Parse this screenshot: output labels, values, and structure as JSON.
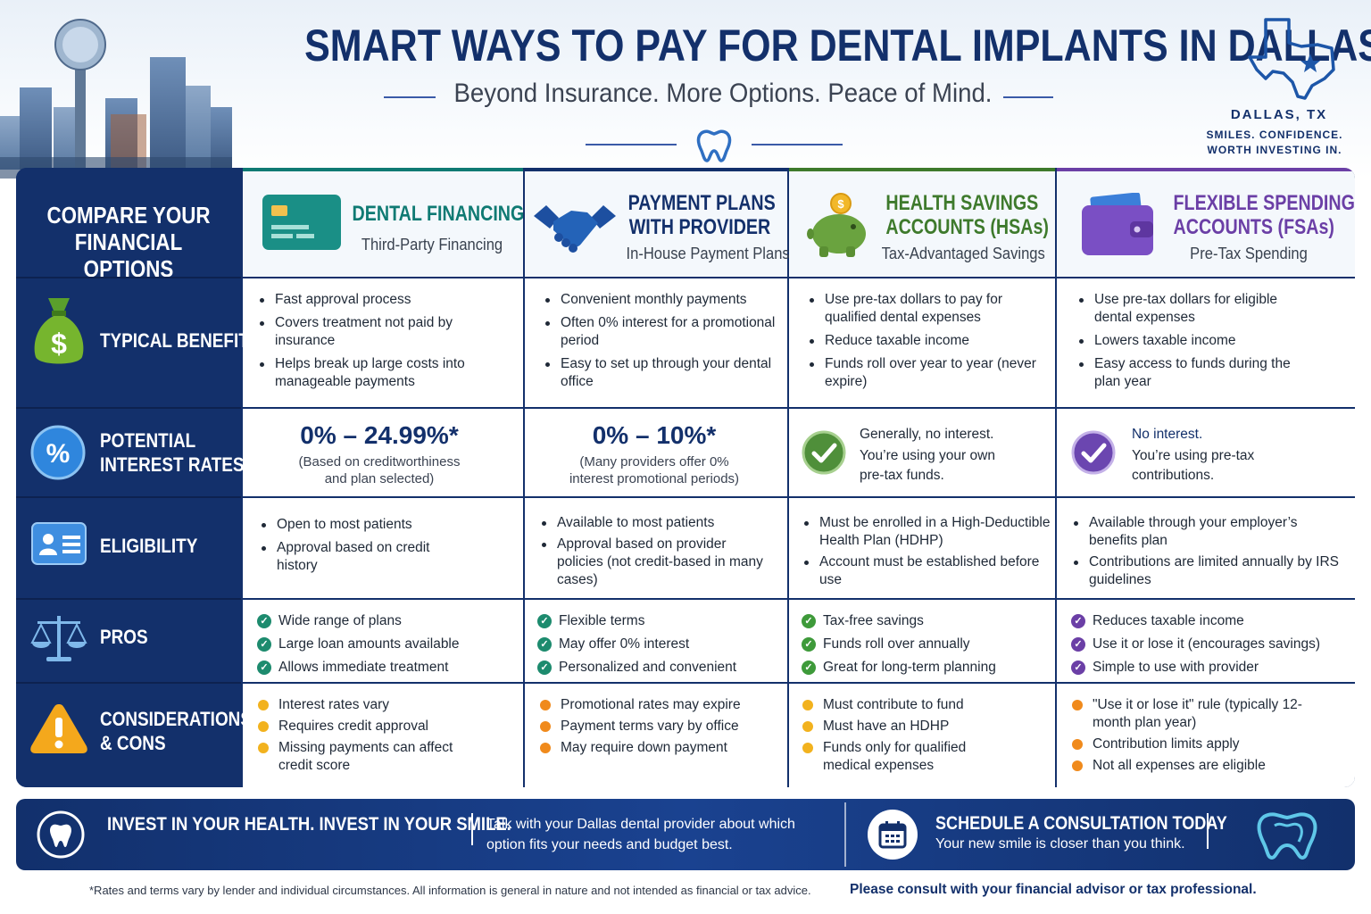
{
  "header": {
    "title": "SMART WAYS TO PAY FOR DENTAL IMPLANTS IN DALLAS",
    "subtitle": "Beyond Insurance. More Options. Peace of Mind.",
    "location": "DALLAS, TX",
    "tagline_1": "SMILES. CONFIDENCE.",
    "tagline_2": "WORTH INVESTING IN."
  },
  "table": {
    "corner_title_1": "COMPARE YOUR",
    "corner_title_2": "FINANCIAL OPTIONS",
    "columns": [
      {
        "title_1": "DENTAL FINANCING PLANS",
        "title_2": "",
        "subtitle": "Third-Party Financing",
        "color": "#0f7a73",
        "icon": "credit-card-icon"
      },
      {
        "title_1": "PAYMENT PLANS",
        "title_2": "WITH PROVIDER",
        "subtitle": "In-House Payment Plans",
        "color": "#13306b",
        "icon": "handshake-icon"
      },
      {
        "title_1": "HEALTH SAVINGS",
        "title_2": "ACCOUNTS (HSAs)",
        "subtitle": "Tax-Advantaged Savings",
        "color": "#3e7a2c",
        "icon": "piggy-bank-icon"
      },
      {
        "title_1": "FLEXIBLE SPENDING",
        "title_2": "ACCOUNTS (FSAs)",
        "subtitle": "Pre-Tax Spending",
        "color": "#6b3fa6",
        "icon": "wallet-icon"
      }
    ],
    "rows": {
      "benefits": {
        "label": "TYPICAL BENEFITS",
        "icon": "money-bag-icon",
        "cells": [
          [
            "Fast approval process",
            "Covers treatment not paid by insurance",
            "Helps break up large costs into manageable payments"
          ],
          [
            "Convenient monthly payments",
            "Often 0% interest for a promotional period",
            "Easy to set up through your dental office"
          ],
          [
            "Use pre-tax dollars to pay for qualified dental expenses",
            "Reduce taxable income",
            "Funds roll over year to year (never expire)"
          ],
          [
            "Use pre-tax dollars for eligible dental expenses",
            "Lowers taxable income",
            "Easy access to funds during the plan year"
          ]
        ]
      },
      "rates": {
        "label_1": "POTENTIAL",
        "label_2": "INTEREST RATES",
        "icon": "percent-icon",
        "cells": [
          {
            "big": "0% – 24.99%*",
            "note_1": "(Based on creditworthiness",
            "note_2": "and plan selected)"
          },
          {
            "big": "0% – 10%*",
            "note_1": "(Many providers offer 0%",
            "note_2": "interest promotional periods)"
          },
          {
            "lead": "Generally, no interest.",
            "note_1": "You’re using your own",
            "note_2": "pre-tax funds."
          },
          {
            "lead": "No interest.",
            "note_1": "You’re using pre-tax",
            "note_2": "contributions."
          }
        ]
      },
      "eligibility": {
        "label": "ELIGIBILITY",
        "icon": "id-card-icon",
        "cells": [
          [
            "Open to most patients",
            "Approval based on credit history"
          ],
          [
            "Available to most patients",
            "Approval based on provider policies (not credit-based in many cases)"
          ],
          [
            "Must be enrolled in a High-Deductible Health Plan (HDHP)",
            "Account must be established before use"
          ],
          [
            "Available through your employer’s benefits plan",
            "Contributions are limited annually by IRS guidelines"
          ]
        ]
      },
      "pros": {
        "label": "PROS",
        "icon": "scales-icon",
        "cells": [
          [
            "Wide range of plans",
            "Large loan amounts available",
            "Allows immediate treatment"
          ],
          [
            "Flexible terms",
            "May offer 0% interest",
            "Personalized and convenient"
          ],
          [
            "Tax-free savings",
            "Funds roll over annually",
            "Great for long-term planning"
          ],
          [
            "Reduces taxable income",
            "Use it or lose it (encourages savings)",
            "Simple to use with provider"
          ]
        ]
      },
      "cons": {
        "label_1": "CONSIDERATIONS",
        "label_2": "& CONS",
        "icon": "warning-icon",
        "cells": [
          [
            "Interest rates vary",
            "Requires credit approval",
            "Missing payments can affect credit score"
          ],
          [
            "Promotional rates may expire",
            "Payment terms vary by office",
            "May require down payment"
          ],
          [
            "Must contribute to fund",
            "Must have an HDHP",
            "Funds only for qualified medical expenses"
          ],
          [
            "\"Use it or lose it\" rule (typically 12-month plan year)",
            "Contribution limits apply",
            "Not all expenses are eligible"
          ]
        ]
      }
    }
  },
  "banner": {
    "headline": "INVEST IN YOUR HEALTH. INVEST IN YOUR SMILE.",
    "body_1": "Talk with your Dallas dental provider about which",
    "body_2": "option fits your needs and budget best.",
    "cta_title": "SCHEDULE A CONSULTATION TODAY",
    "cta_sub": "Your new smile is closer than you think."
  },
  "footer": {
    "disclaimer": "*Rates and terms vary by lender and individual circumstances. All information is general in nature and not intended as financial or tax advice.",
    "advice": "Please consult with your financial advisor or tax professional."
  },
  "colors": {
    "navy": "#13306b",
    "teal": "#0f7a73",
    "green": "#3e7a2c",
    "purple": "#6b3fa6",
    "check_teal": "#1d8b6e",
    "check_green": "#3e9a3a",
    "check_purple": "#6b3fa6",
    "cons_orange": "#f2a31a",
    "cons_dot_orange": "#f08a1c"
  }
}
